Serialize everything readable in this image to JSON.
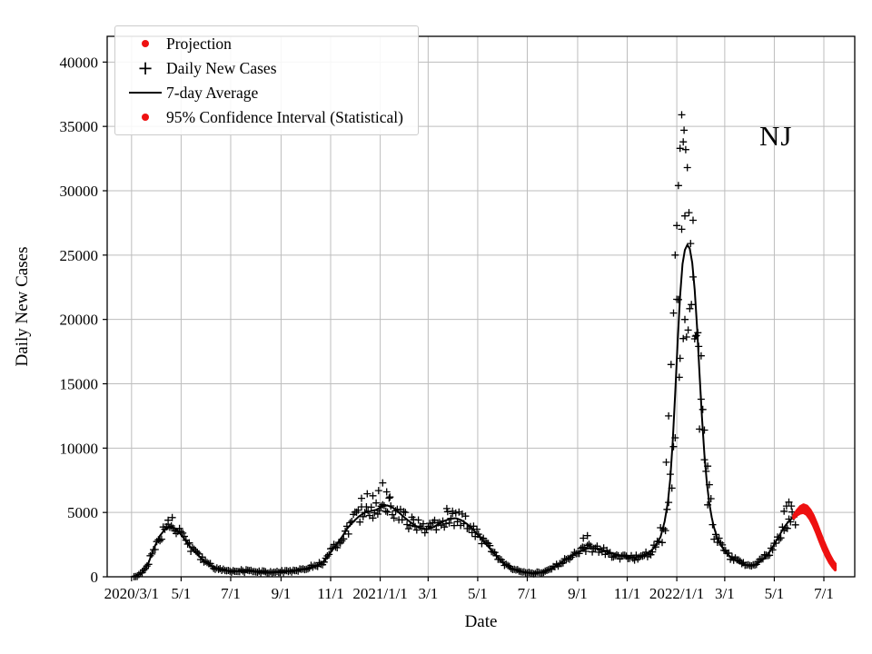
{
  "chart_data": {
    "type": "line",
    "title": "",
    "xlabel": "Date",
    "ylabel": "Daily New Cases",
    "annotation": {
      "text": "NJ"
    },
    "grid": true,
    "grid_color": "#bdbdbd",
    "xlim": [
      -30,
      890
    ],
    "ylim": [
      0,
      42000
    ],
    "x_ticks": [
      {
        "day": 0,
        "label": "2020/3/1"
      },
      {
        "day": 61,
        "label": "5/1"
      },
      {
        "day": 122,
        "label": "7/1"
      },
      {
        "day": 184,
        "label": "9/1"
      },
      {
        "day": 245,
        "label": "11/1"
      },
      {
        "day": 306,
        "label": "2021/1/1"
      },
      {
        "day": 365,
        "label": "3/1"
      },
      {
        "day": 426,
        "label": "5/1"
      },
      {
        "day": 487,
        "label": "7/1"
      },
      {
        "day": 549,
        "label": "9/1"
      },
      {
        "day": 610,
        "label": "11/1"
      },
      {
        "day": 671,
        "label": "2022/1/1"
      },
      {
        "day": 730,
        "label": "3/1"
      },
      {
        "day": 791,
        "label": "5/1"
      },
      {
        "day": 852,
        "label": "7/1"
      }
    ],
    "y_ticks": [
      0,
      5000,
      10000,
      15000,
      20000,
      25000,
      30000,
      35000,
      40000
    ],
    "colors": {
      "daily": "#000000",
      "avg": "#000000",
      "projection": "#ee1111"
    },
    "legend": [
      {
        "label": "Projection",
        "marker": "dot",
        "color": "#ee1111"
      },
      {
        "label": "Daily New Cases",
        "marker": "plus",
        "color": "#000000"
      },
      {
        "label": "7-day Average",
        "marker": "line",
        "color": "#000000"
      },
      {
        "label": "95% Confidence Interval (Statistical)",
        "marker": "dot",
        "color": "#ee1111"
      }
    ],
    "series": {
      "avg7": {
        "name": "7-day Average",
        "points": [
          [
            0,
            10
          ],
          [
            7,
            80
          ],
          [
            14,
            350
          ],
          [
            21,
            1100
          ],
          [
            28,
            2300
          ],
          [
            35,
            3200
          ],
          [
            42,
            3750
          ],
          [
            49,
            3900
          ],
          [
            56,
            3650
          ],
          [
            63,
            3100
          ],
          [
            70,
            2500
          ],
          [
            77,
            2000
          ],
          [
            84,
            1550
          ],
          [
            91,
            1150
          ],
          [
            98,
            850
          ],
          [
            105,
            650
          ],
          [
            112,
            520
          ],
          [
            119,
            450
          ],
          [
            126,
            420
          ],
          [
            133,
            430
          ],
          [
            140,
            460
          ],
          [
            147,
            450
          ],
          [
            154,
            420
          ],
          [
            161,
            400
          ],
          [
            168,
            370
          ],
          [
            175,
            360
          ],
          [
            182,
            360
          ],
          [
            189,
            400
          ],
          [
            196,
            450
          ],
          [
            203,
            510
          ],
          [
            210,
            580
          ],
          [
            217,
            680
          ],
          [
            224,
            800
          ],
          [
            231,
            950
          ],
          [
            238,
            1300
          ],
          [
            245,
            1900
          ],
          [
            252,
            2500
          ],
          [
            259,
            3100
          ],
          [
            266,
            3800
          ],
          [
            273,
            4300
          ],
          [
            280,
            4700
          ],
          [
            287,
            5000
          ],
          [
            294,
            5100
          ],
          [
            301,
            5200
          ],
          [
            308,
            5450
          ],
          [
            315,
            5550
          ],
          [
            322,
            5350
          ],
          [
            329,
            5000
          ],
          [
            336,
            4600
          ],
          [
            343,
            4250
          ],
          [
            350,
            3950
          ],
          [
            357,
            3750
          ],
          [
            364,
            3700
          ],
          [
            371,
            3850
          ],
          [
            378,
            4100
          ],
          [
            385,
            4350
          ],
          [
            392,
            4500
          ],
          [
            399,
            4550
          ],
          [
            406,
            4400
          ],
          [
            413,
            4100
          ],
          [
            420,
            3700
          ],
          [
            427,
            3200
          ],
          [
            434,
            2700
          ],
          [
            441,
            2200
          ],
          [
            448,
            1700
          ],
          [
            455,
            1200
          ],
          [
            462,
            850
          ],
          [
            469,
            600
          ],
          [
            476,
            450
          ],
          [
            483,
            350
          ],
          [
            490,
            290
          ],
          [
            497,
            270
          ],
          [
            504,
            330
          ],
          [
            511,
            470
          ],
          [
            518,
            680
          ],
          [
            525,
            950
          ],
          [
            532,
            1250
          ],
          [
            539,
            1550
          ],
          [
            546,
            1800
          ],
          [
            553,
            2000
          ],
          [
            560,
            2180
          ],
          [
            567,
            2250
          ],
          [
            574,
            2180
          ],
          [
            581,
            2050
          ],
          [
            588,
            1900
          ],
          [
            595,
            1750
          ],
          [
            602,
            1650
          ],
          [
            609,
            1550
          ],
          [
            616,
            1500
          ],
          [
            623,
            1550
          ],
          [
            630,
            1680
          ],
          [
            637,
            1900
          ],
          [
            644,
            2300
          ],
          [
            651,
            3100
          ],
          [
            656,
            4300
          ],
          [
            660,
            5800
          ],
          [
            663,
            7600
          ],
          [
            666,
            10500
          ],
          [
            669,
            14200
          ],
          [
            672,
            18200
          ],
          [
            675,
            21800
          ],
          [
            678,
            24300
          ],
          [
            681,
            25400
          ],
          [
            684,
            25800
          ],
          [
            687,
            25500
          ],
          [
            690,
            24400
          ],
          [
            693,
            22300
          ],
          [
            696,
            19300
          ],
          [
            699,
            15800
          ],
          [
            702,
            12400
          ],
          [
            705,
            9500
          ],
          [
            708,
            7300
          ],
          [
            711,
            5700
          ],
          [
            714,
            4600
          ],
          [
            717,
            3800
          ],
          [
            721,
            3000
          ],
          [
            725,
            2500
          ],
          [
            729,
            2100
          ],
          [
            733,
            1800
          ],
          [
            738,
            1500
          ],
          [
            743,
            1300
          ],
          [
            748,
            1100
          ],
          [
            753,
            980
          ],
          [
            758,
            880
          ],
          [
            763,
            870
          ],
          [
            768,
            950
          ],
          [
            773,
            1150
          ],
          [
            778,
            1400
          ],
          [
            783,
            1750
          ],
          [
            788,
            2200
          ],
          [
            793,
            2750
          ],
          [
            798,
            3300
          ],
          [
            803,
            3850
          ],
          [
            808,
            4250
          ],
          [
            813,
            4550
          ],
          [
            817,
            4700
          ]
        ]
      },
      "daily": {
        "name": "Daily New Cases",
        "marker": "plus",
        "range": [
          3,
          818
        ],
        "step_days": 2,
        "noise_rel": 0.14,
        "spike_range": [
          648,
          718
        ],
        "spike_noise_rel": 0.28,
        "outliers": [
          [
            45,
            4400
          ],
          [
            50,
            4600
          ],
          [
            283,
            6100
          ],
          [
            290,
            6450
          ],
          [
            297,
            6300
          ],
          [
            304,
            6700
          ],
          [
            309,
            7300
          ],
          [
            314,
            6600
          ],
          [
            318,
            6200
          ],
          [
            388,
            5300
          ],
          [
            395,
            5100
          ],
          [
            556,
            3000
          ],
          [
            561,
            3200
          ],
          [
            658,
            8900
          ],
          [
            661,
            12500
          ],
          [
            664,
            16500
          ],
          [
            667,
            20500
          ],
          [
            669,
            25000
          ],
          [
            671,
            27300
          ],
          [
            673,
            30400
          ],
          [
            675,
            33300
          ],
          [
            677,
            35900
          ],
          [
            679,
            33800
          ],
          [
            680,
            34700
          ],
          [
            682,
            33200
          ],
          [
            684,
            31800
          ],
          [
            686,
            28300
          ],
          [
            688,
            25900
          ],
          [
            691,
            23300
          ],
          [
            694,
            18700
          ],
          [
            698,
            17900
          ],
          [
            701,
            13800
          ],
          [
            705,
            11400
          ],
          [
            709,
            8600
          ],
          [
            674,
            15500
          ],
          [
            681,
            20000
          ],
          [
            803,
            5100
          ],
          [
            806,
            5500
          ],
          [
            809,
            5800
          ],
          [
            812,
            5500
          ]
        ]
      },
      "projection": {
        "name": "Projection / 95% CI",
        "curves": [
          [
            [
              815,
              4750
            ],
            [
              819,
              5150
            ],
            [
              823,
              5450
            ],
            [
              827,
              5600
            ],
            [
              831,
              5500
            ],
            [
              835,
              5200
            ],
            [
              839,
              4750
            ],
            [
              843,
              4150
            ],
            [
              847,
              3500
            ],
            [
              851,
              2850
            ],
            [
              855,
              2250
            ],
            [
              859,
              1700
            ],
            [
              863,
              1250
            ],
            [
              866,
              1000
            ]
          ],
          [
            [
              815,
              4700
            ],
            [
              819,
              5050
            ],
            [
              823,
              5320
            ],
            [
              827,
              5450
            ],
            [
              831,
              5330
            ],
            [
              835,
              5020
            ],
            [
              839,
              4550
            ],
            [
              843,
              3950
            ],
            [
              847,
              3300
            ],
            [
              851,
              2650
            ],
            [
              855,
              2050
            ],
            [
              859,
              1530
            ],
            [
              863,
              1100
            ],
            [
              866,
              870
            ]
          ],
          [
            [
              815,
              4650
            ],
            [
              819,
              4970
            ],
            [
              823,
              5200
            ],
            [
              827,
              5300
            ],
            [
              831,
              5170
            ],
            [
              835,
              4850
            ],
            [
              839,
              4370
            ],
            [
              843,
              3770
            ],
            [
              847,
              3120
            ],
            [
              851,
              2470
            ],
            [
              855,
              1890
            ],
            [
              859,
              1390
            ],
            [
              863,
              990
            ],
            [
              866,
              760
            ]
          ],
          [
            [
              815,
              4600
            ],
            [
              819,
              4880
            ],
            [
              823,
              5080
            ],
            [
              827,
              5150
            ],
            [
              831,
              5000
            ],
            [
              835,
              4670
            ],
            [
              839,
              4180
            ],
            [
              843,
              3580
            ],
            [
              847,
              2940
            ],
            [
              851,
              2300
            ],
            [
              855,
              1730
            ],
            [
              859,
              1250
            ],
            [
              863,
              870
            ],
            [
              866,
              650
            ]
          ],
          [
            [
              815,
              4550
            ],
            [
              819,
              4800
            ],
            [
              823,
              4950
            ],
            [
              827,
              5000
            ],
            [
              831,
              4840
            ],
            [
              835,
              4490
            ],
            [
              839,
              4000
            ],
            [
              843,
              3400
            ],
            [
              847,
              2760
            ],
            [
              851,
              2130
            ],
            [
              855,
              1580
            ],
            [
              859,
              1110
            ],
            [
              863,
              750
            ],
            [
              866,
              540
            ]
          ]
        ]
      }
    }
  }
}
